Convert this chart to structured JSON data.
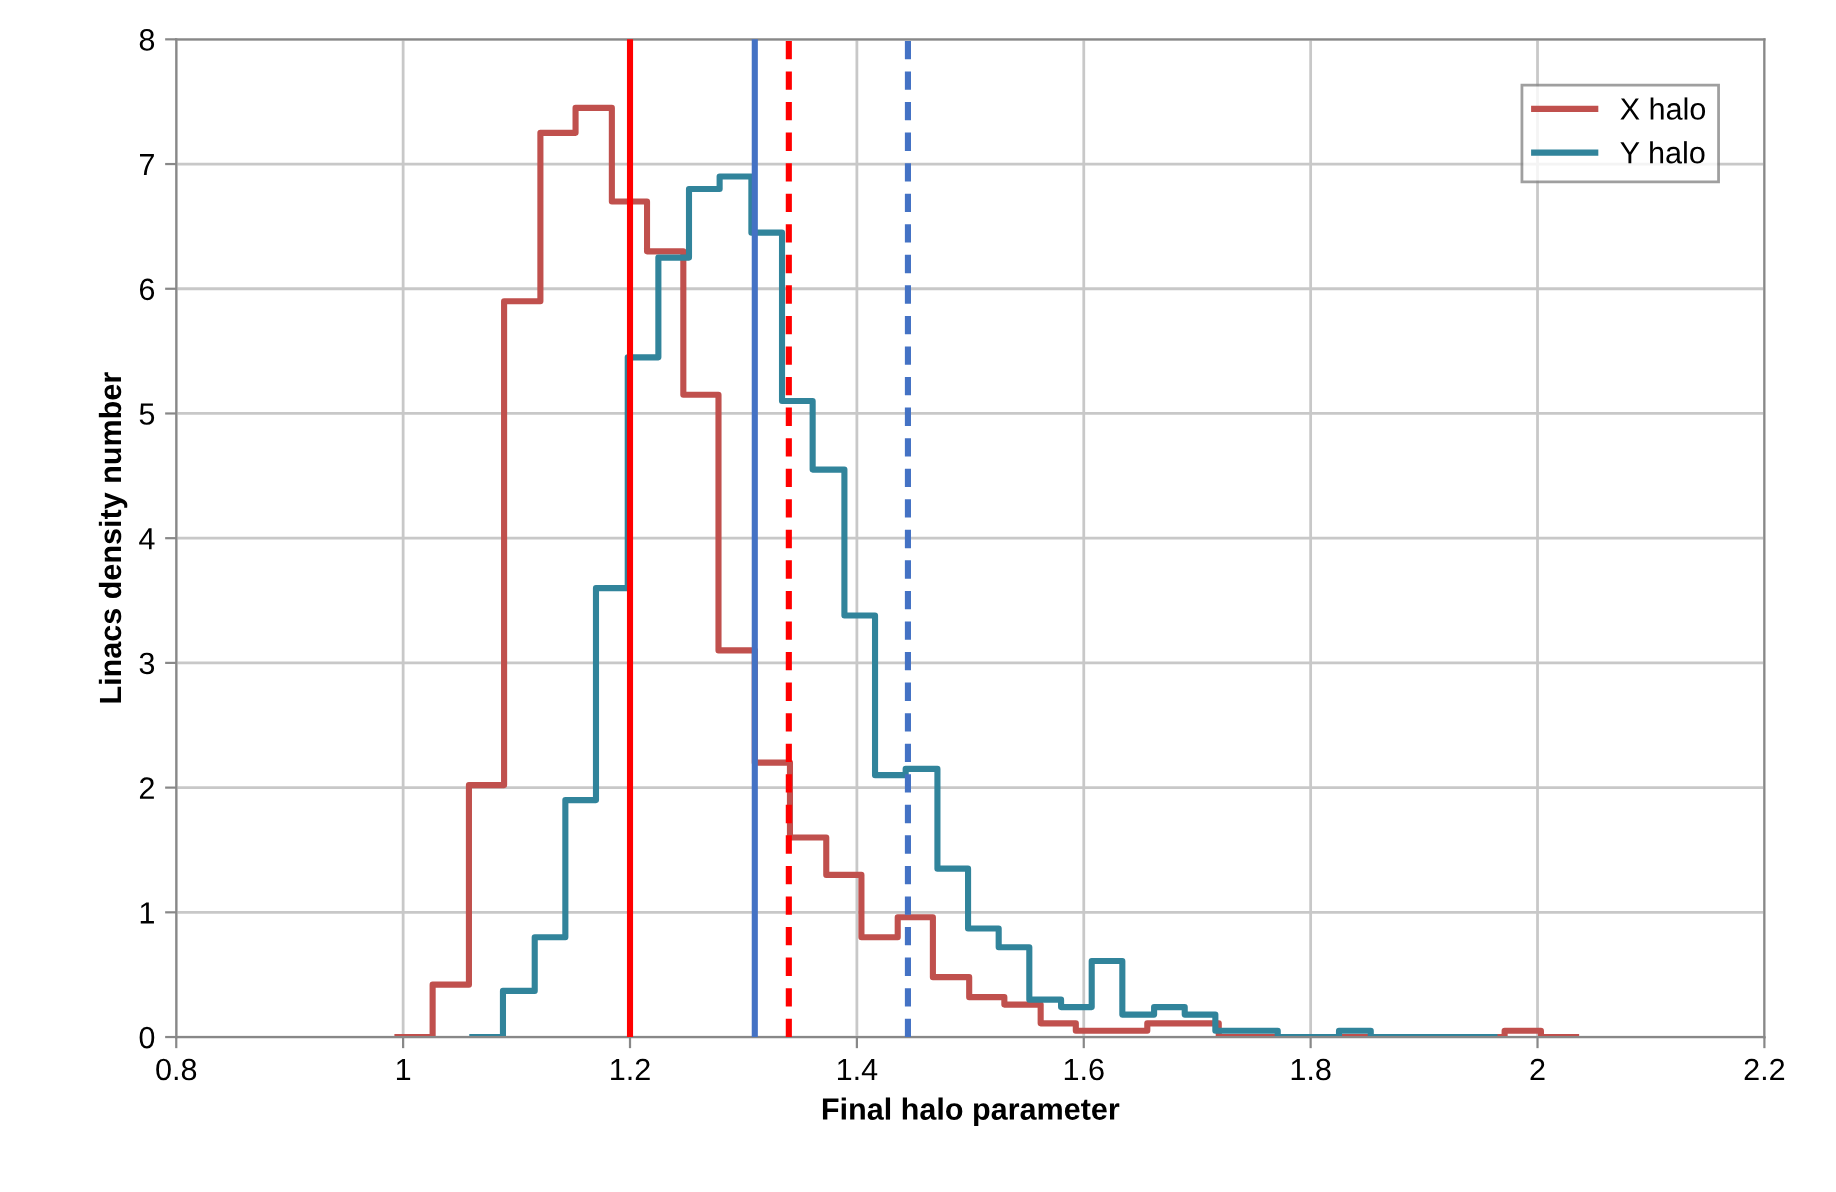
{
  "chart_data": {
    "type": "step",
    "xlabel": "Final halo parameter",
    "ylabel": "Linacs density number",
    "series": [
      {
        "name": "X halo",
        "color": "#c0504d",
        "x": [
          0.995,
          1.026,
          1.058,
          1.089,
          1.121,
          1.152,
          1.184,
          1.215,
          1.247,
          1.278,
          1.31,
          1.341,
          1.373,
          1.404,
          1.436,
          1.467,
          1.499,
          1.53,
          1.562,
          1.593,
          1.625,
          1.656,
          1.688,
          1.719,
          1.751,
          1.782,
          1.814,
          1.845,
          1.877,
          1.908,
          1.94,
          1.971,
          2.003,
          2.034
        ],
        "values": [
          0,
          0.42,
          2.02,
          5.9,
          7.25,
          7.45,
          6.7,
          6.3,
          5.15,
          3.1,
          2.2,
          1.6,
          1.3,
          0.8,
          0.96,
          0.48,
          0.32,
          0.26,
          0.11,
          0.05,
          0.05,
          0.11,
          0.11,
          0,
          0,
          0,
          0,
          0,
          0,
          0,
          0,
          0.05,
          0,
          0
        ]
      },
      {
        "name": "Y halo",
        "color": "#31849b",
        "x": [
          1.061,
          1.088,
          1.116,
          1.143,
          1.17,
          1.198,
          1.225,
          1.252,
          1.279,
          1.307,
          1.334,
          1.361,
          1.389,
          1.416,
          1.443,
          1.471,
          1.498,
          1.525,
          1.552,
          1.58,
          1.607,
          1.634,
          1.662,
          1.689,
          1.716,
          1.744,
          1.771,
          1.798,
          1.825,
          1.853,
          1.88,
          1.907,
          1.935,
          1.962
        ],
        "values": [
          0,
          0.37,
          0.8,
          1.9,
          3.6,
          5.45,
          6.25,
          6.8,
          6.9,
          6.45,
          5.1,
          4.55,
          3.38,
          2.1,
          2.15,
          1.35,
          0.87,
          0.72,
          0.3,
          0.24,
          0.61,
          0.18,
          0.24,
          0.18,
          0.05,
          0.05,
          0,
          0,
          0.05,
          0,
          0,
          0,
          0,
          0
        ]
      }
    ],
    "ref_lines": [
      {
        "axis": "x",
        "value": 1.2,
        "color": "#ff0000",
        "line_style": "solid"
      },
      {
        "axis": "x",
        "value": 1.31,
        "color": "#4472c4",
        "line_style": "solid"
      },
      {
        "axis": "x",
        "value": 1.34,
        "color": "#ff0000",
        "line_style": "dashed"
      },
      {
        "axis": "x",
        "value": 1.445,
        "color": "#4472c4",
        "line_style": "dashed"
      }
    ],
    "xlim": [
      0.8,
      2.2
    ],
    "xticks": [
      0.8,
      1,
      1.2,
      1.4,
      1.6,
      1.8,
      2,
      2.2
    ],
    "ylim": [
      0,
      8
    ],
    "yticks": [
      0,
      1,
      2,
      3,
      4,
      5,
      6,
      7,
      8
    ],
    "grid": true,
    "legend": "top right"
  }
}
